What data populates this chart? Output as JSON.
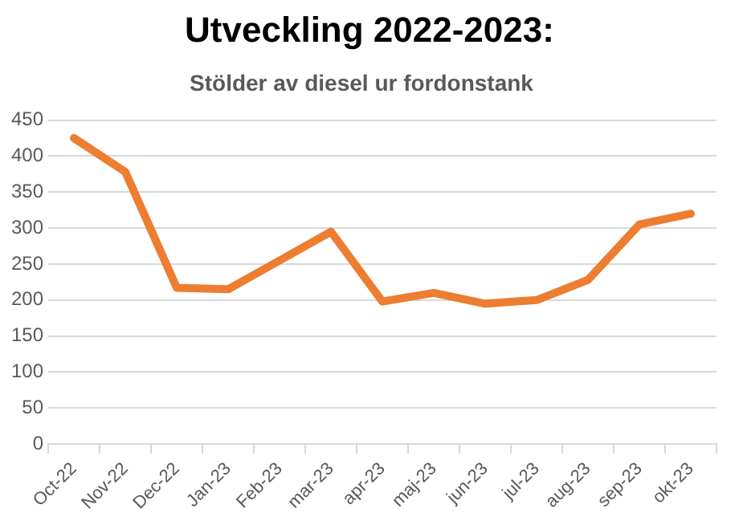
{
  "chart_data": {
    "type": "line",
    "title": "Utveckling 2022-2023:",
    "subtitle": "Stölder av diesel ur fordonstank",
    "categories": [
      "Oct-22",
      "Nov-22",
      "Dec-22",
      "Jan-23",
      "Feb-23",
      "mar-23",
      "apr-23",
      "maj-23",
      "jun-23",
      "jul-23",
      "aug-23",
      "sep-23",
      "okt-23"
    ],
    "series": [
      {
        "color": "#ed7d31",
        "values": [
          425,
          378,
          217,
          215,
          255,
          295,
          198,
          210,
          195,
          200,
          228,
          305,
          320
        ]
      }
    ],
    "ylim": [
      0,
      450
    ],
    "yticks": [
      0,
      50,
      100,
      150,
      200,
      250,
      300,
      350,
      400,
      450
    ],
    "grid": "y",
    "legend": false,
    "marker": "none",
    "line_style": "solid"
  }
}
